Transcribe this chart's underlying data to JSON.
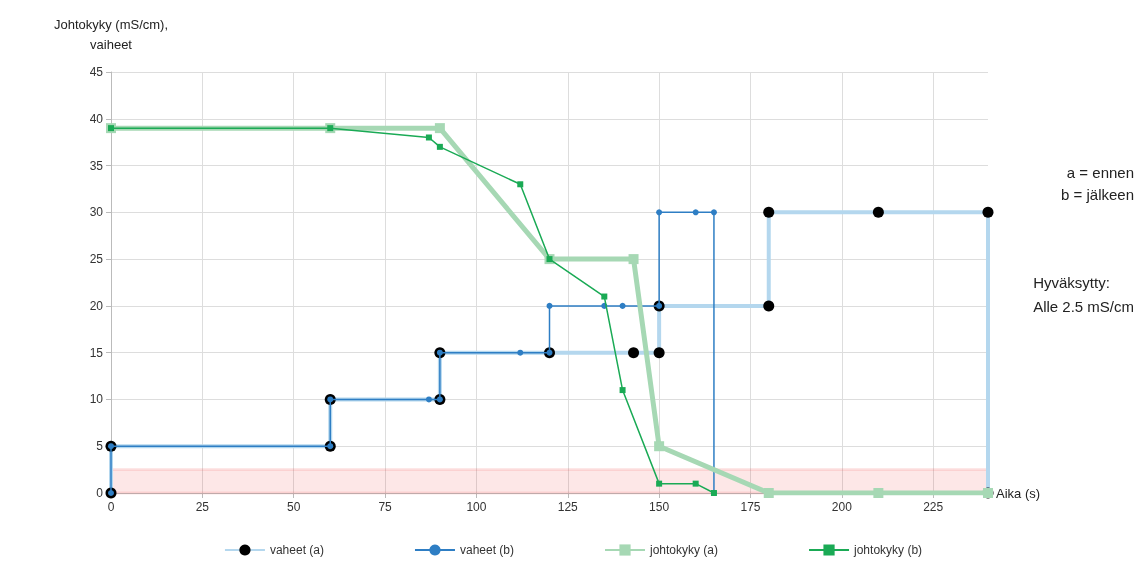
{
  "chart_data": {
    "type": "line",
    "ylabel": "Johtokyky (mS/cm),\nvaiheet",
    "xlabel": "Aika (s)",
    "xlim": [
      0,
      240
    ],
    "xticks": [
      0,
      25,
      50,
      75,
      100,
      125,
      150,
      175,
      200,
      225
    ],
    "ylim": [
      0,
      45
    ],
    "yticks": [
      0,
      5,
      10,
      15,
      20,
      25,
      30,
      35,
      40,
      45
    ],
    "grid": true,
    "legend": "bottom",
    "series": [
      {
        "name": "vaheet (a)",
        "color": "#b4d7ee",
        "marker": "circle",
        "x": [
          0,
          0,
          60,
          60,
          90,
          90,
          120,
          143,
          150,
          150,
          180,
          180,
          210,
          240,
          240
        ],
        "values": [
          0,
          5,
          5,
          10,
          10,
          15,
          15,
          15,
          15,
          20,
          20,
          30,
          30,
          30,
          0
        ]
      },
      {
        "name": "vaheet (b)",
        "color": "#2e7ec4",
        "marker": "circle",
        "x": [
          0,
          0,
          60,
          60,
          87,
          90,
          90,
          112,
          120,
          120,
          135,
          140,
          150,
          150,
          160,
          165,
          165
        ],
        "values": [
          0,
          5,
          5,
          10,
          10,
          10,
          15,
          15,
          15,
          20,
          20,
          20,
          20,
          30,
          30,
          30,
          0
        ]
      },
      {
        "name": "johtokyky (a)",
        "color": "#a6d8b4",
        "marker": "square",
        "x": [
          0,
          60,
          90,
          120,
          143,
          150,
          180,
          210,
          240
        ],
        "values": [
          39,
          39,
          39,
          25,
          25,
          5,
          0,
          0,
          0
        ]
      },
      {
        "name": "johtokyky (b)",
        "color": "#1aaa55",
        "marker": "square",
        "x": [
          0,
          60,
          87,
          90,
          112,
          120,
          135,
          140,
          150,
          160,
          165
        ],
        "values": [
          39,
          39,
          38,
          37,
          33,
          25,
          21,
          11,
          1,
          1,
          0
        ]
      }
    ],
    "bands": [
      {
        "axis": "y",
        "from": 0,
        "to": 2.5,
        "color": "#ee1111"
      }
    ],
    "annotations": [
      "a = ennen",
      "b = jälkeen",
      "Hyväksytty:\nAlle 2.5 mS/cm"
    ]
  }
}
